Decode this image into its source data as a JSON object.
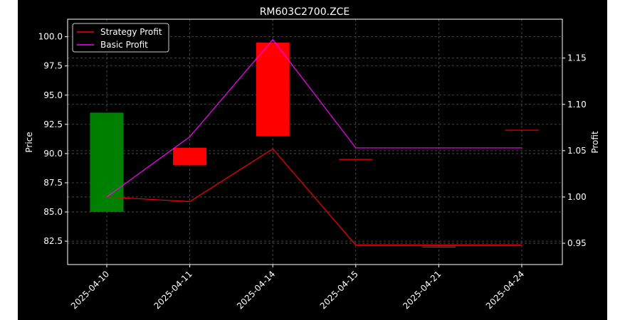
{
  "chart_data": {
    "type": "candlestick_with_lines",
    "title": "RM603C2700.ZCE",
    "xlabel": "",
    "ylabel_left": "Price",
    "ylabel_right": "Profit",
    "categories": [
      "2025-04-10",
      "2025-04-11",
      "2025-04-14",
      "2025-04-15",
      "2025-04-21",
      "2025-04-24"
    ],
    "ylim_left": [
      80.5,
      101.5
    ],
    "yticks_left": [
      82.5,
      85.0,
      87.5,
      90.0,
      92.5,
      95.0,
      97.5,
      100.0
    ],
    "ytick_labels_left": [
      "82.5",
      "85.0",
      "87.5",
      "90.0",
      "92.5",
      "95.0",
      "97.5",
      "100.0"
    ],
    "ylim_right": [
      0.927,
      1.192
    ],
    "yticks_right": [
      0.95,
      1.0,
      1.05,
      1.1,
      1.15
    ],
    "ytick_labels_right": [
      "0.95",
      "1.00",
      "1.05",
      "1.10",
      "1.15"
    ],
    "candles": [
      {
        "date": "2025-04-10",
        "open": 85.0,
        "close": 93.5,
        "color": "#008000"
      },
      {
        "date": "2025-04-11",
        "open": 90.5,
        "close": 89.0,
        "color": "#ff0000"
      },
      {
        "date": "2025-04-14",
        "open": 99.5,
        "close": 91.5,
        "color": "#ff0000"
      },
      {
        "date": "2025-04-15",
        "open": 89.5,
        "close": 89.5,
        "color": "#ff0000"
      },
      {
        "date": "2025-04-21",
        "open": 82.0,
        "close": 82.0,
        "color": "#ff0000"
      },
      {
        "date": "2025-04-24",
        "open": 92.0,
        "close": 92.0,
        "color": "#ff0000"
      }
    ],
    "series": [
      {
        "name": "Strategy Profit",
        "color": "#ff0000",
        "values": [
          1.0,
          0.995,
          1.052,
          0.948,
          0.948,
          0.948
        ]
      },
      {
        "name": "Basic Profit",
        "color": "#ff00ff",
        "values": [
          1.0,
          1.065,
          1.17,
          1.053,
          1.053,
          1.053
        ]
      }
    ],
    "grid": true,
    "legend_position": "top-left",
    "background": "#000000",
    "text_color": "#ffffff"
  }
}
